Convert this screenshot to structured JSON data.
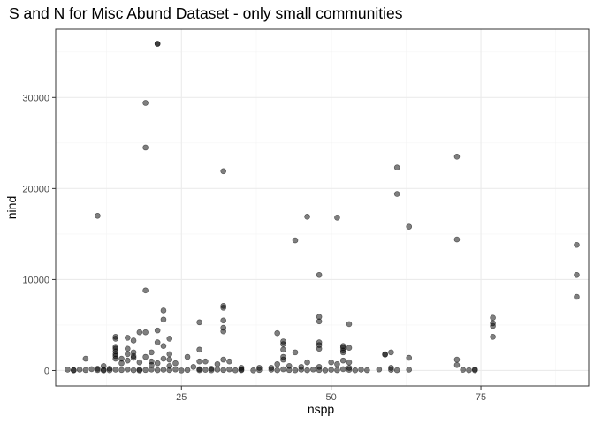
{
  "chart_data": {
    "type": "scatter",
    "title": "S and N for Misc Abund Dataset - only small communities",
    "xlabel": "nspp",
    "ylabel": "nind",
    "xlim": [
      4,
      93
    ],
    "ylim": [
      -1700,
      37500
    ],
    "x_ticks": [
      25,
      50,
      75
    ],
    "x_tick_labels": [
      "25",
      "50",
      "75"
    ],
    "x_minor_ticks": [
      12.5,
      37.5,
      62.5,
      87.5
    ],
    "y_ticks": [
      0,
      10000,
      20000,
      30000
    ],
    "y_tick_labels": [
      "0",
      "10000",
      "20000",
      "30000"
    ],
    "y_minor_ticks": [
      5000,
      15000,
      25000,
      35000
    ],
    "grid": true,
    "point_color": "#000000",
    "points": [
      [
        21,
        35900
      ],
      [
        21,
        35900
      ],
      [
        19,
        29400
      ],
      [
        19,
        24500
      ],
      [
        32,
        21900
      ],
      [
        61,
        22300
      ],
      [
        71,
        23500
      ],
      [
        61,
        19400
      ],
      [
        11,
        17000
      ],
      [
        46,
        16900
      ],
      [
        51,
        16800
      ],
      [
        63,
        15800
      ],
      [
        44,
        14300
      ],
      [
        71,
        14400
      ],
      [
        91,
        13800
      ],
      [
        91,
        10500
      ],
      [
        48,
        10500
      ],
      [
        91,
        8100
      ],
      [
        19,
        8800
      ],
      [
        32,
        7100
      ],
      [
        32,
        6900
      ],
      [
        22,
        6600
      ],
      [
        48,
        5900
      ],
      [
        77,
        5800
      ],
      [
        22,
        5600
      ],
      [
        32,
        5500
      ],
      [
        28,
        5300
      ],
      [
        48,
        5400
      ],
      [
        77,
        5200
      ],
      [
        53,
        5100
      ],
      [
        77,
        4900
      ],
      [
        32,
        4700
      ],
      [
        32,
        4300
      ],
      [
        18,
        4200
      ],
      [
        21,
        4400
      ],
      [
        19,
        4200
      ],
      [
        41,
        4100
      ],
      [
        14,
        3700
      ],
      [
        16,
        3600
      ],
      [
        23,
        3500
      ],
      [
        14,
        3500
      ],
      [
        77,
        3700
      ],
      [
        17,
        3300
      ],
      [
        42,
        3200
      ],
      [
        48,
        3100
      ],
      [
        21,
        3100
      ],
      [
        42,
        2900
      ],
      [
        48,
        2800
      ],
      [
        14,
        2600
      ],
      [
        22,
        2700
      ],
      [
        52,
        2700
      ],
      [
        52,
        2500
      ],
      [
        53,
        2500
      ],
      [
        14,
        2400
      ],
      [
        16,
        2400
      ],
      [
        28,
        2300
      ],
      [
        48,
        2400
      ],
      [
        42,
        2300
      ],
      [
        52,
        2200
      ],
      [
        14,
        2100
      ],
      [
        17,
        2000
      ],
      [
        44,
        2000
      ],
      [
        52,
        2000
      ],
      [
        60,
        2000
      ],
      [
        20,
        2000
      ],
      [
        14,
        1800
      ],
      [
        16,
        1800
      ],
      [
        23,
        1800
      ],
      [
        59,
        1800
      ],
      [
        59,
        1750
      ],
      [
        14,
        1600
      ],
      [
        17,
        1600
      ],
      [
        19,
        1500
      ],
      [
        26,
        1500
      ],
      [
        42,
        1500
      ],
      [
        63,
        1400
      ],
      [
        9,
        1300
      ],
      [
        14,
        1300
      ],
      [
        15,
        1300
      ],
      [
        17,
        1400
      ],
      [
        22,
        1300
      ],
      [
        23,
        1200
      ],
      [
        32,
        1200
      ],
      [
        42,
        1200
      ],
      [
        52,
        1100
      ],
      [
        71,
        1200
      ],
      [
        16,
        1100
      ],
      [
        20,
        1000
      ],
      [
        28,
        1000
      ],
      [
        29,
        1000
      ],
      [
        33,
        1000
      ],
      [
        46,
        900
      ],
      [
        50,
        900
      ],
      [
        53,
        900
      ],
      [
        18,
        900
      ],
      [
        15,
        800
      ],
      [
        21,
        800
      ],
      [
        24,
        800
      ],
      [
        31,
        700
      ],
      [
        41,
        700
      ],
      [
        51,
        700
      ],
      [
        71,
        600
      ],
      [
        12,
        500
      ],
      [
        20,
        600
      ],
      [
        23,
        500
      ],
      [
        43,
        500
      ],
      [
        60,
        300
      ],
      [
        48,
        400
      ],
      [
        38,
        300
      ],
      [
        35,
        300
      ],
      [
        13,
        200
      ],
      [
        30,
        200
      ],
      [
        40,
        300
      ],
      [
        53,
        300
      ],
      [
        45,
        400
      ],
      [
        27,
        400
      ],
      [
        6,
        100
      ],
      [
        7,
        50
      ],
      [
        8,
        100
      ],
      [
        9,
        50
      ],
      [
        10,
        150
      ],
      [
        11,
        50
      ],
      [
        12,
        80
      ],
      [
        13,
        30
      ],
      [
        14,
        100
      ],
      [
        15,
        60
      ],
      [
        16,
        120
      ],
      [
        17,
        40
      ],
      [
        18,
        90
      ],
      [
        19,
        60
      ],
      [
        20,
        110
      ],
      [
        21,
        40
      ],
      [
        22,
        90
      ],
      [
        23,
        50
      ],
      [
        24,
        120
      ],
      [
        26,
        60
      ],
      [
        28,
        150
      ],
      [
        28,
        40
      ],
      [
        29,
        80
      ],
      [
        30,
        30
      ],
      [
        31,
        100
      ],
      [
        32,
        60
      ],
      [
        33,
        130
      ],
      [
        35,
        40
      ],
      [
        35,
        120
      ],
      [
        38,
        60
      ],
      [
        40,
        100
      ],
      [
        41,
        40
      ],
      [
        42,
        140
      ],
      [
        43,
        60
      ],
      [
        45,
        100
      ],
      [
        46,
        40
      ],
      [
        47,
        120
      ],
      [
        48,
        60
      ],
      [
        50,
        80
      ],
      [
        51,
        40
      ],
      [
        52,
        150
      ],
      [
        53,
        80
      ],
      [
        55,
        100
      ],
      [
        56,
        40
      ],
      [
        58,
        120
      ],
      [
        60,
        80
      ],
      [
        61,
        40
      ],
      [
        63,
        100
      ],
      [
        72,
        80
      ],
      [
        73,
        40
      ],
      [
        74,
        120
      ],
      [
        74,
        30
      ],
      [
        7,
        20
      ],
      [
        11,
        200
      ],
      [
        12,
        10
      ],
      [
        18,
        10
      ],
      [
        25,
        10
      ],
      [
        34,
        30
      ],
      [
        37,
        20
      ],
      [
        44,
        30
      ],
      [
        49,
        20
      ],
      [
        54,
        30
      ]
    ]
  }
}
